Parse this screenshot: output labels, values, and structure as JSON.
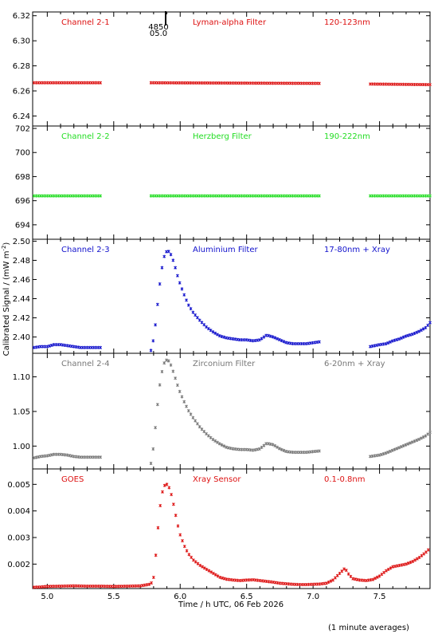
{
  "figure": {
    "ylabel": "Calibrated Signal / (mW m",
    "ylabel_sup": "-2",
    "ylabel_end": ")",
    "xlabel": "Time / h UTC, 06 Feb 2026",
    "footnote": "(1 minute averages)",
    "marker_top": "4850",
    "marker_bottom": "05.0",
    "xlim": [
      4.89,
      7.88
    ],
    "xticks": [
      "5.0",
      "5.5",
      "6.0",
      "6.5",
      "7.0",
      "7.5"
    ]
  },
  "chart_data": [
    {
      "type": "scatter",
      "color": "#dd1111",
      "labels": [
        "Channel 2-1",
        "Lyman-alpha Filter",
        "120-123nm"
      ],
      "ylim": [
        6.232,
        6.323
      ],
      "yticks": [
        "6.24",
        "6.26",
        "6.28",
        "6.30",
        "6.32"
      ],
      "segments": [
        {
          "x": [
            4.9,
            5.4
          ],
          "y": [
            6.2665,
            6.2665
          ]
        },
        {
          "x": [
            5.78,
            7.05
          ],
          "y": [
            6.2665,
            6.266
          ]
        },
        {
          "x": [
            7.43,
            7.88
          ],
          "y": [
            6.2655,
            6.265
          ]
        }
      ]
    },
    {
      "type": "scatter",
      "color": "#22dd22",
      "labels": [
        "Channel 2-2",
        "Herzberg Filter",
        "190-222nm"
      ],
      "ylim": [
        692.8,
        702.2
      ],
      "yticks": [
        "694",
        "696",
        "698",
        "700",
        "702"
      ],
      "segments": [
        {
          "x": [
            4.9,
            5.4
          ],
          "y": [
            696.4,
            696.4
          ]
        },
        {
          "x": [
            5.78,
            7.05
          ],
          "y": [
            696.4,
            696.4
          ]
        },
        {
          "x": [
            7.43,
            7.88
          ],
          "y": [
            696.4,
            696.4
          ]
        }
      ]
    },
    {
      "type": "scatter",
      "color": "#1111cc",
      "labels": [
        "Channel 2-3",
        "Aluminium Filter",
        "17-80nm + Xray"
      ],
      "ylim": [
        2.383,
        2.502
      ],
      "yticks": [
        "2.40",
        "2.42",
        "2.44",
        "2.46",
        "2.48",
        "2.50"
      ],
      "segments": [
        {
          "x": [
            4.9,
            4.95,
            5.0,
            5.05,
            5.1,
            5.15,
            5.2,
            5.25,
            5.3,
            5.4
          ],
          "y": [
            2.389,
            2.39,
            2.39,
            2.392,
            2.392,
            2.391,
            2.39,
            2.389,
            2.389,
            2.389
          ]
        },
        {
          "x": [
            5.78,
            5.8,
            5.82,
            5.84,
            5.86,
            5.88,
            5.9,
            5.92,
            5.94,
            5.96,
            5.98,
            6.0,
            6.03,
            6.06,
            6.1,
            6.15,
            6.2,
            6.25,
            6.3,
            6.35,
            6.4,
            6.45,
            6.5,
            6.55,
            6.6,
            6.65,
            6.7,
            6.75,
            6.8,
            6.85,
            6.9,
            6.95,
            7.0,
            7.05
          ],
          "y": [
            2.386,
            2.398,
            2.42,
            2.448,
            2.47,
            2.484,
            2.49,
            2.489,
            2.483,
            2.474,
            2.464,
            2.455,
            2.444,
            2.434,
            2.425,
            2.417,
            2.41,
            2.405,
            2.401,
            2.399,
            2.398,
            2.397,
            2.397,
            2.396,
            2.397,
            2.402,
            2.4,
            2.397,
            2.394,
            2.393,
            2.393,
            2.393,
            2.394,
            2.395
          ]
        },
        {
          "x": [
            7.43,
            7.5,
            7.55,
            7.6,
            7.65,
            7.7,
            7.75,
            7.8,
            7.85,
            7.88
          ],
          "y": [
            2.39,
            2.392,
            2.393,
            2.396,
            2.398,
            2.401,
            2.403,
            2.406,
            2.41,
            2.415
          ]
        }
      ]
    },
    {
      "type": "scatter",
      "color": "#777777",
      "labels": [
        "Channel 2-4",
        "Zirconium Filter",
        "6-20nm + Xray"
      ],
      "ylim": [
        0.967,
        1.134
      ],
      "yticks": [
        "1.00",
        "1.05",
        "1.10"
      ],
      "segments": [
        {
          "x": [
            4.9,
            4.95,
            5.0,
            5.05,
            5.1,
            5.15,
            5.2,
            5.25,
            5.3,
            5.4
          ],
          "y": [
            0.983,
            0.985,
            0.986,
            0.988,
            0.988,
            0.987,
            0.985,
            0.984,
            0.984,
            0.984
          ]
        },
        {
          "x": [
            5.78,
            5.8,
            5.82,
            5.84,
            5.86,
            5.88,
            5.9,
            5.92,
            5.94,
            5.96,
            5.98,
            6.0,
            6.03,
            6.06,
            6.1,
            6.15,
            6.2,
            6.25,
            6.3,
            6.35,
            6.4,
            6.45,
            6.5,
            6.55,
            6.6,
            6.65,
            6.7,
            6.75,
            6.8,
            6.85,
            6.9,
            6.95,
            7.0,
            7.05
          ],
          "y": [
            0.975,
            1.0,
            1.04,
            1.08,
            1.105,
            1.12,
            1.125,
            1.122,
            1.112,
            1.1,
            1.088,
            1.077,
            1.064,
            1.052,
            1.04,
            1.027,
            1.017,
            1.009,
            1.003,
            0.998,
            0.996,
            0.995,
            0.995,
            0.994,
            0.996,
            1.004,
            1.002,
            0.996,
            0.992,
            0.991,
            0.991,
            0.991,
            0.992,
            0.993
          ]
        },
        {
          "x": [
            7.43,
            7.5,
            7.55,
            7.6,
            7.65,
            7.7,
            7.75,
            7.8,
            7.85,
            7.88
          ],
          "y": [
            0.985,
            0.987,
            0.99,
            0.994,
            0.998,
            1.002,
            1.006,
            1.01,
            1.015,
            1.02
          ]
        }
      ]
    },
    {
      "type": "scatter",
      "color": "#dd1111",
      "labels": [
        "GOES",
        "Xray Sensor",
        "0.1-0.8nm"
      ],
      "ylim": [
        0.00108,
        0.00558
      ],
      "yticks": [
        "0.002",
        "0.003",
        "0.004",
        "0.005"
      ],
      "segments": [
        {
          "x": [
            4.9,
            4.95,
            5.0,
            5.1,
            5.2,
            5.3,
            5.4,
            5.5,
            5.6,
            5.7,
            5.78,
            5.8,
            5.82,
            5.84,
            5.86,
            5.88,
            5.9,
            5.92,
            5.94,
            5.96,
            5.98,
            6.0,
            6.03,
            6.06,
            6.1,
            6.15,
            6.2,
            6.25,
            6.3,
            6.35,
            6.4,
            6.45,
            6.5,
            6.55,
            6.6,
            6.65,
            6.7,
            6.75,
            6.8,
            6.85,
            6.9,
            6.95,
            7.0,
            7.05,
            7.1,
            7.15,
            7.2,
            7.24,
            7.27,
            7.3,
            7.35,
            7.4,
            7.45,
            7.5,
            7.55,
            7.6,
            7.65,
            7.7,
            7.75,
            7.8,
            7.85,
            7.88
          ],
          "y": [
            0.00113,
            0.00114,
            0.00116,
            0.00117,
            0.00118,
            0.00117,
            0.00117,
            0.00116,
            0.00117,
            0.00118,
            0.00125,
            0.0015,
            0.0025,
            0.0038,
            0.0046,
            0.00495,
            0.005,
            0.00485,
            0.0045,
            0.004,
            0.0035,
            0.0031,
            0.0027,
            0.0024,
            0.00215,
            0.00195,
            0.0018,
            0.00165,
            0.0015,
            0.00143,
            0.0014,
            0.00138,
            0.0014,
            0.00141,
            0.00138,
            0.00135,
            0.00132,
            0.00128,
            0.00126,
            0.00124,
            0.00123,
            0.00123,
            0.00124,
            0.00125,
            0.00128,
            0.0014,
            0.00165,
            0.00185,
            0.0016,
            0.00145,
            0.0014,
            0.00138,
            0.00142,
            0.00155,
            0.00175,
            0.0019,
            0.00195,
            0.002,
            0.0021,
            0.00225,
            0.00245,
            0.0026
          ]
        }
      ]
    }
  ]
}
